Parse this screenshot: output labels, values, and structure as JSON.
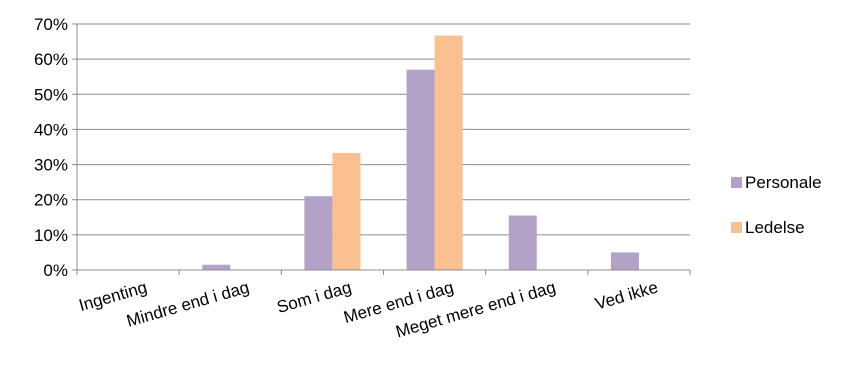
{
  "chart_data": {
    "type": "bar",
    "categories": [
      "Ingenting",
      "Mindre end i dag",
      "Som i dag",
      "Mere end i dag",
      "Meget mere end i dag",
      "Ved ikke"
    ],
    "series": [
      {
        "name": "Personale",
        "values": [
          0,
          1.5,
          21,
          57,
          15.5,
          5
        ],
        "color": "#b3a2c7"
      },
      {
        "name": "Ledelse",
        "values": [
          0,
          0,
          33.3,
          66.7,
          0,
          0
        ],
        "color": "#fac090"
      }
    ],
    "y_ticks": [
      "0%",
      "10%",
      "20%",
      "30%",
      "40%",
      "50%",
      "60%",
      "70%"
    ],
    "ylim": [
      0,
      70
    ],
    "grid": true,
    "legend_position": "right"
  }
}
